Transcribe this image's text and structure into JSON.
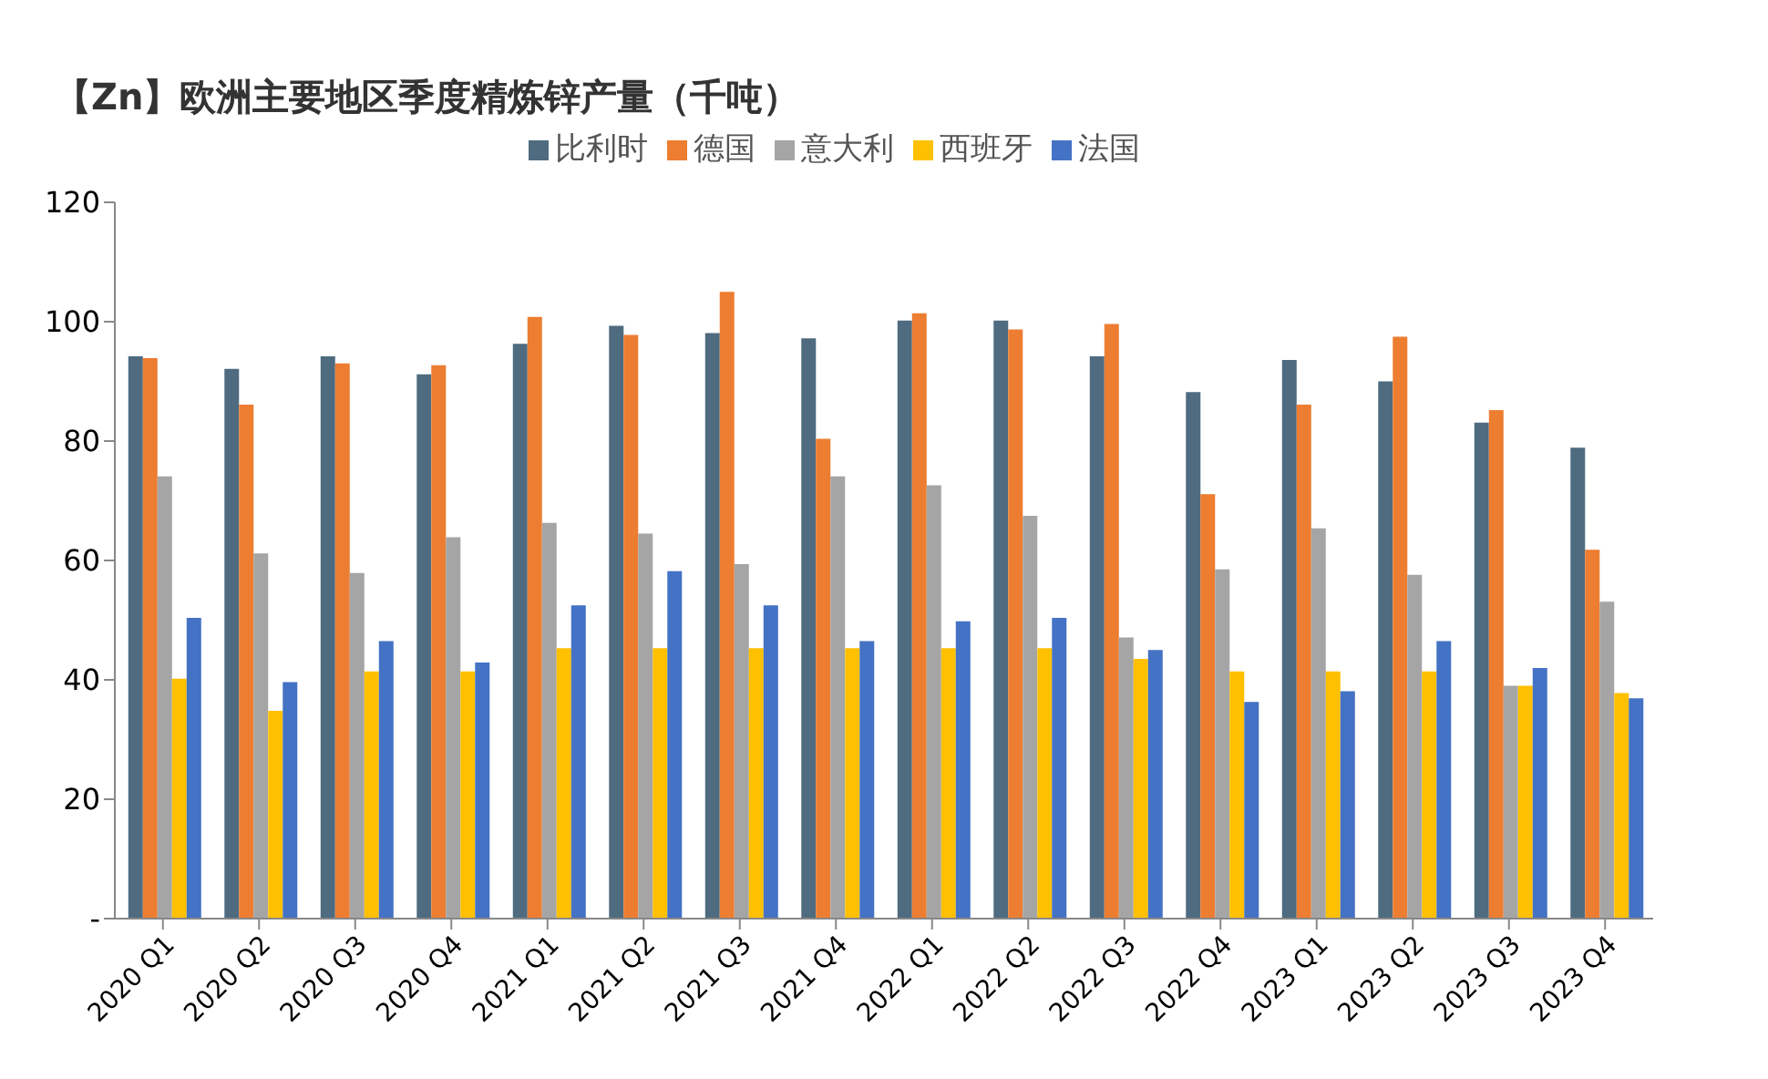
{
  "chart_data": {
    "type": "bar",
    "title": "【Zn】欧洲主要地区季度精炼锌产量（千吨）",
    "categories": [
      "2020 Q1",
      "2020 Q2",
      "2020 Q3",
      "2020 Q4",
      "2021 Q1",
      "2021 Q2",
      "2021 Q3",
      "2021 Q4",
      "2022 Q1",
      "2022 Q2",
      "2022 Q3",
      "2022 Q4",
      "2023 Q1",
      "2023 Q2",
      "2023 Q3",
      "2023 Q4"
    ],
    "series": [
      {
        "name": "比利时",
        "color": "#4e6b80",
        "values": [
          94.2,
          92.1,
          94.2,
          91.2,
          96.3,
          99.3,
          98.1,
          97.2,
          100.2,
          100.2,
          94.2,
          88.2,
          93.6,
          90,
          83.1,
          78.9
        ]
      },
      {
        "name": "德国",
        "color": "#ed7d31",
        "values": [
          93.9,
          86.1,
          93,
          92.7,
          100.8,
          97.8,
          105,
          80.4,
          101.4,
          98.7,
          99.6,
          71.1,
          86.1,
          97.5,
          85.2,
          61.8
        ]
      },
      {
        "name": "意大利",
        "color": "#a5a5a5",
        "values": [
          74.1,
          61.2,
          57.9,
          63.9,
          66.3,
          64.5,
          59.4,
          74.1,
          72.6,
          67.5,
          47.1,
          58.5,
          65.4,
          57.6,
          39,
          53.1
        ]
      },
      {
        "name": "西班牙",
        "color": "#ffc000",
        "values": [
          40.2,
          34.8,
          41.4,
          41.4,
          45.3,
          45.3,
          45.3,
          45.3,
          45.3,
          45.3,
          43.5,
          41.4,
          41.4,
          41.4,
          39,
          37.8
        ]
      },
      {
        "name": "法国",
        "color": "#4472c4",
        "values": [
          50.4,
          39.6,
          46.5,
          42.9,
          52.5,
          58.2,
          52.5,
          46.5,
          49.8,
          50.4,
          45,
          36.3,
          38.1,
          46.5,
          42,
          36.9
        ]
      }
    ],
    "ylim": [
      0,
      120
    ],
    "yticks": [
      {
        "value": 0,
        "label": "-"
      },
      20,
      40,
      60,
      80,
      100,
      120
    ],
    "grid": false,
    "legend": "top"
  }
}
